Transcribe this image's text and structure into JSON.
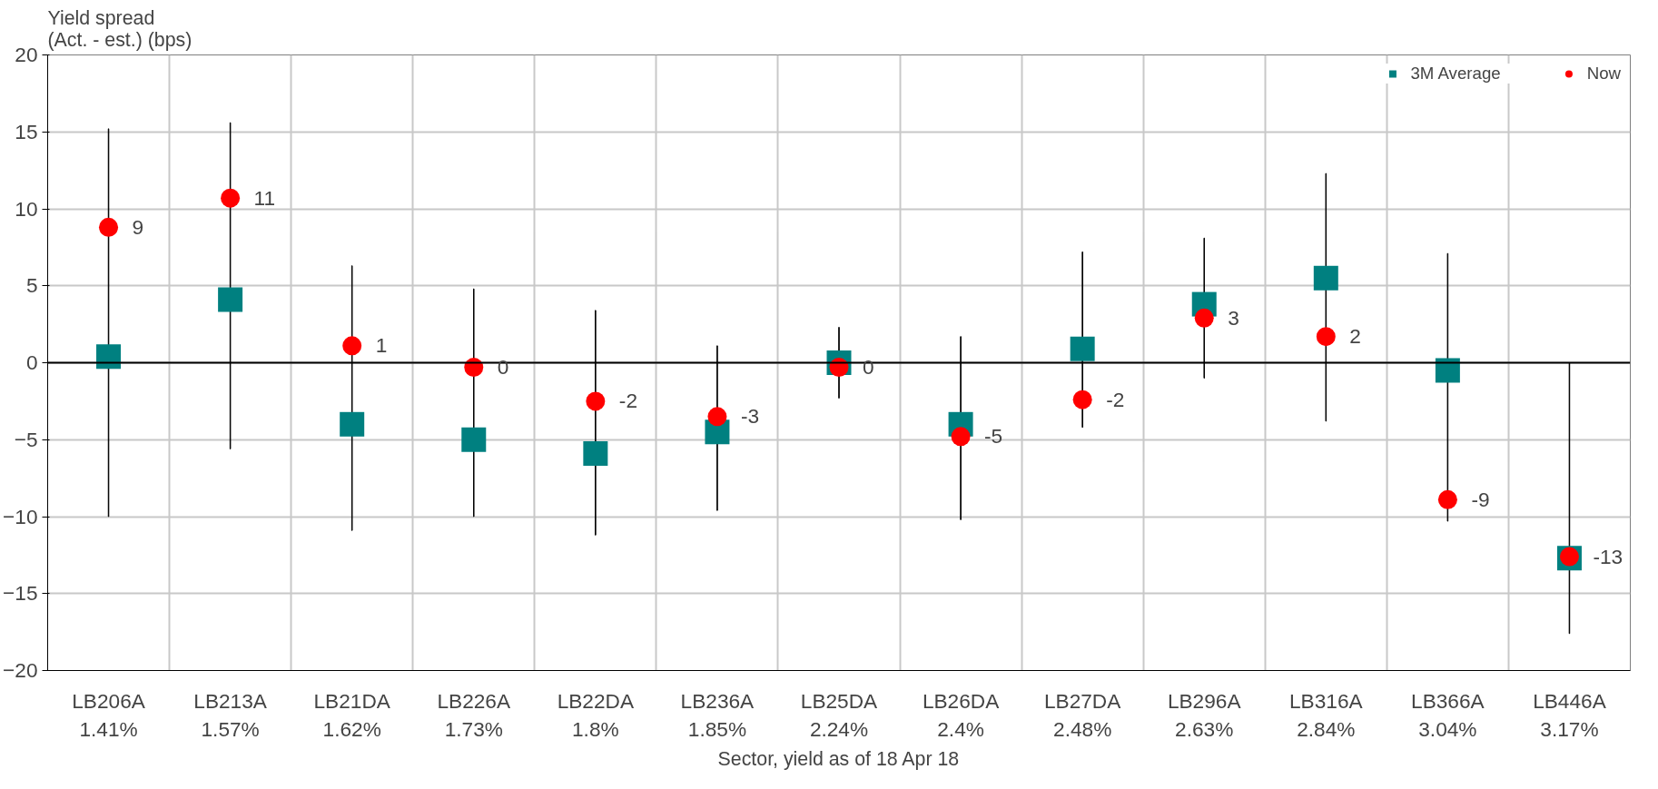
{
  "chart_data": {
    "type": "scatter",
    "xlabel": "Sector, yield as of 18 Apr 18",
    "ylabel": "Yield spread\n(Act. - est.) (bps)",
    "categories": [
      "LB206A\n1.41%",
      "LB213A\n1.57%",
      "LB21DA\n1.62%",
      "LB226A\n1.73%",
      "LB22DA\n1.8%",
      "LB236A\n1.85%",
      "LB25DA\n2.24%",
      "LB26DA\n2.4%",
      "LB27DA\n2.48%",
      "LB296A\n2.63%",
      "LB316A\n2.84%",
      "LB366A\n3.04%",
      "LB446A\n3.17%"
    ],
    "series": [
      {
        "type": "bar",
        "color": "#000000",
        "base": [
          -10.0,
          -5.6,
          -10.9,
          -10.0,
          -11.2,
          -9.6,
          -2.3,
          -10.2,
          -4.2,
          -1.0,
          -3.8,
          -10.3,
          -17.6
        ],
        "values": [
          25.2,
          21.2,
          17.2,
          14.8,
          14.6,
          10.7,
          4.6,
          11.9,
          11.4,
          9.1,
          16.1,
          17.4,
          17.6
        ]
      },
      {
        "type": "scatter",
        "name": "3M Average",
        "color": "#008080",
        "marker": "square",
        "values": [
          0.4,
          4.1,
          -4.0,
          -5.0,
          -5.9,
          -4.5,
          0.0,
          -4.0,
          0.9,
          3.8,
          5.5,
          -0.5,
          -12.7
        ]
      },
      {
        "name": "Now",
        "color": "#ff0000",
        "marker": "circle",
        "values": [
          8.8,
          10.7,
          1.1,
          -0.3,
          -2.5,
          -3.5,
          -0.3,
          -4.8,
          -2.4,
          2.9,
          1.7,
          -8.9,
          -12.6
        ],
        "value_labels": [
          "9",
          "11",
          "1",
          "0",
          "-2",
          "-3",
          "0",
          "-5",
          "-2",
          "3",
          "2",
          "-9",
          "-13"
        ]
      }
    ],
    "ylim": [
      -20,
      20
    ],
    "yticks": [
      -20,
      -15,
      -10,
      -5,
      0,
      5,
      10,
      15,
      20
    ],
    "ref_lines": [
      {
        "axis": "y",
        "value": 0,
        "color": "#000000"
      }
    ],
    "grid": true,
    "legend": "top right"
  }
}
